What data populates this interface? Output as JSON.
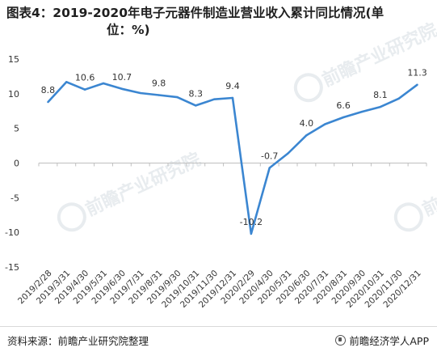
{
  "title_line1": "图表4：2019-2020年电子元器件制造业营业收入累计同比情况(单",
  "title_line2": "位：%)",
  "watermark_text": "前瞻产业研究院",
  "source": "资料来源：前瞻产业研究院整理",
  "brand": "前瞻经济学人APP",
  "colors": {
    "line": "#3b86d1",
    "grid": "#e6e6e6",
    "axis": "#333333",
    "watermark": "#e8ecef"
  },
  "chart_data": {
    "type": "line",
    "title": "图表4：2019-2020年电子元器件制造业营业收入累计同比情况(单位：%)",
    "xlabel": "",
    "ylabel": "",
    "ylim": [
      -15,
      15
    ],
    "yticks": [
      "15",
      "10",
      "5",
      "0",
      "-5",
      "-10",
      "-15"
    ],
    "grid": false,
    "categories": [
      "2019/2/28",
      "2019/3/31",
      "2019/4/30",
      "2019/5/31",
      "2019/6/30",
      "2019/7/31",
      "2019/8/31",
      "2019/9/30",
      "2019/10/31",
      "2019/11/30",
      "2019/12/31",
      "2020/2/29",
      "2020/4/30",
      "2020/5/31",
      "2020/6/30",
      "2020/7/31",
      "2020/8/31",
      "2020/9/30",
      "2020/10/31",
      "2020/11/30",
      "2020/12/31"
    ],
    "values": [
      8.8,
      11.7,
      10.6,
      11.5,
      10.7,
      10.1,
      9.8,
      9.5,
      8.3,
      9.2,
      9.4,
      -10.2,
      -0.7,
      1.4,
      4.0,
      5.6,
      6.6,
      7.4,
      8.1,
      9.3,
      11.3
    ],
    "labels": [
      "8.8",
      "",
      "10.6",
      "",
      "10.7",
      "",
      "9.8",
      "",
      "8.3",
      "",
      "9.4",
      "-10.2",
      "-0.7",
      "",
      "4.0",
      "",
      "6.6",
      "",
      "8.1",
      "",
      "11.3"
    ],
    "label_above": [
      true,
      true,
      true,
      true,
      true,
      true,
      true,
      true,
      true,
      true,
      true,
      true,
      true,
      true,
      true,
      true,
      true,
      true,
      true,
      true,
      true
    ]
  }
}
